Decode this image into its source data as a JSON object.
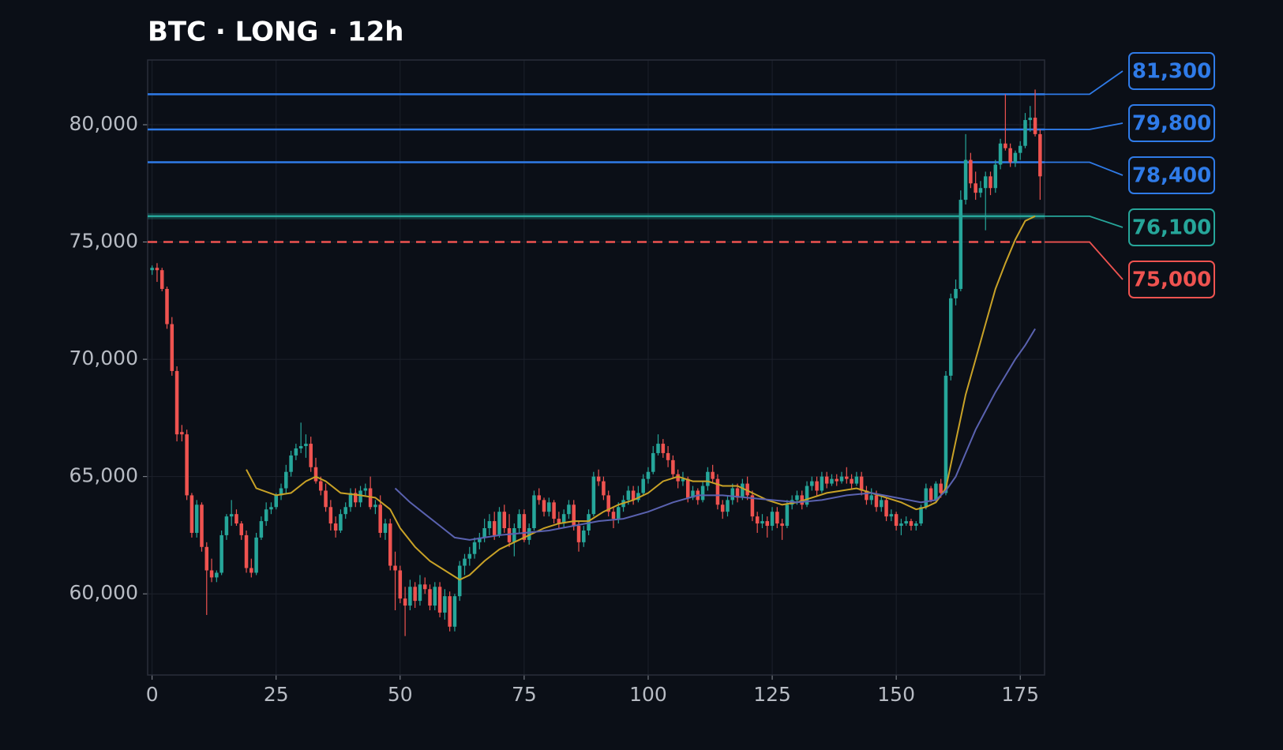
{
  "chart_data": {
    "type": "candlestick",
    "title": "BTC · LONG · 12h",
    "up_color": "#26a69a",
    "down_color": "#ef5350",
    "xlim": [
      -0.9,
      179.9
    ],
    "xticks": [
      0,
      25,
      50,
      75,
      100,
      125,
      150,
      175
    ],
    "ylim": [
      56540,
      82760
    ],
    "yticks": [
      {
        "value": 60000,
        "label": "60,000"
      },
      {
        "value": 65000,
        "label": "65,000"
      },
      {
        "value": 70000,
        "label": "70,000"
      },
      {
        "value": 75000,
        "label": "75,000"
      },
      {
        "value": 80000,
        "label": "80,000"
      }
    ],
    "grid": true,
    "levels": [
      {
        "value": 81300,
        "label": "81,300",
        "color": "#2f7be8"
      },
      {
        "value": 79800,
        "label": "79,800",
        "color": "#2f7be8"
      },
      {
        "value": 78400,
        "label": "78,400",
        "color": "#2f7be8"
      },
      {
        "value": 76100,
        "label": "76,100",
        "color": "#26a69a",
        "band": true
      },
      {
        "value": 75000,
        "label": "75,000",
        "color": "#ef5350",
        "dashed": true
      }
    ],
    "ma": [
      {
        "color": "#c9a227",
        "x": [
          19,
          21,
          25,
          28,
          31,
          33,
          35,
          38,
          42,
          45,
          48,
          50,
          53,
          56,
          59,
          62,
          64,
          67,
          70,
          73,
          76,
          79,
          82,
          85,
          88,
          91,
          94,
          97,
          100,
          103,
          106,
          109,
          112,
          115,
          118,
          121,
          124,
          127,
          130,
          133,
          136,
          139,
          142,
          145,
          148,
          151,
          154,
          156,
          158,
          160,
          162,
          164,
          166,
          168,
          170,
          172,
          174,
          176,
          178
        ],
        "values": [
          65300,
          64500,
          64200,
          64300,
          64800,
          65000,
          64800,
          64300,
          64200,
          64100,
          63600,
          62800,
          62000,
          61400,
          61000,
          60600,
          60800,
          61400,
          61900,
          62200,
          62500,
          62800,
          63000,
          63100,
          63100,
          63500,
          63800,
          64000,
          64300,
          64800,
          65000,
          64800,
          64800,
          64600,
          64600,
          64300,
          64000,
          63800,
          63900,
          64100,
          64300,
          64400,
          64500,
          64300,
          64100,
          63900,
          63600,
          63700,
          63900,
          64500,
          66500,
          68500,
          70000,
          71500,
          73000,
          74100,
          75100,
          75900,
          76100
        ]
      },
      {
        "color": "#5a62b0",
        "x": [
          49,
          52,
          55,
          58,
          61,
          64,
          67,
          70,
          75,
          80,
          85,
          90,
          95,
          100,
          105,
          110,
          115,
          120,
          125,
          130,
          135,
          140,
          145,
          150,
          155,
          158,
          160,
          162,
          164,
          166,
          168,
          170,
          172,
          174,
          176,
          178
        ],
        "values": [
          64500,
          63900,
          63400,
          62900,
          62400,
          62300,
          62400,
          62500,
          62600,
          62700,
          62900,
          63100,
          63200,
          63500,
          63900,
          64200,
          64200,
          64100,
          64000,
          63900,
          64000,
          64200,
          64300,
          64100,
          63900,
          64000,
          64400,
          65000,
          66000,
          67000,
          67800,
          68600,
          69300,
          70000,
          70600,
          71300
        ]
      }
    ],
    "ohlc": [
      [
        73800,
        74000,
        73600,
        73900
      ],
      [
        73900,
        74100,
        73300,
        73800
      ],
      [
        73800,
        73900,
        72900,
        73000
      ],
      [
        73000,
        73100,
        71300,
        71500
      ],
      [
        71500,
        71800,
        69300,
        69500
      ],
      [
        69500,
        69700,
        66500,
        66800
      ],
      [
        66900,
        67200,
        66500,
        66800
      ],
      [
        66800,
        67000,
        64000,
        64200
      ],
      [
        64200,
        64300,
        62400,
        62600
      ],
      [
        62600,
        64000,
        62400,
        63800
      ],
      [
        63800,
        63900,
        61800,
        62000
      ],
      [
        62000,
        62200,
        59100,
        61000
      ],
      [
        61000,
        61500,
        60500,
        60700
      ],
      [
        60700,
        61000,
        60500,
        60900
      ],
      [
        60900,
        62700,
        60800,
        62500
      ],
      [
        62500,
        63400,
        62300,
        63300
      ],
      [
        63300,
        64000,
        62900,
        63400
      ],
      [
        63400,
        63600,
        62900,
        63000
      ],
      [
        63000,
        63100,
        62300,
        62500
      ],
      [
        62500,
        62700,
        60900,
        61100
      ],
      [
        61100,
        61500,
        60700,
        60900
      ],
      [
        60900,
        62600,
        60800,
        62400
      ],
      [
        62400,
        63300,
        62300,
        63100
      ],
      [
        63100,
        63900,
        62900,
        63600
      ],
      [
        63600,
        63900,
        63400,
        63700
      ],
      [
        63700,
        64300,
        63600,
        64200
      ],
      [
        64200,
        64700,
        64000,
        64500
      ],
      [
        64500,
        65500,
        64300,
        65200
      ],
      [
        65200,
        66100,
        65000,
        65900
      ],
      [
        65900,
        66400,
        65700,
        66200
      ],
      [
        66200,
        67300,
        66000,
        66300
      ],
      [
        66300,
        66800,
        65800,
        66400
      ],
      [
        66400,
        66700,
        65200,
        65400
      ],
      [
        65400,
        65800,
        64700,
        64800
      ],
      [
        64800,
        65000,
        64200,
        64400
      ],
      [
        64400,
        64700,
        63500,
        63700
      ],
      [
        63700,
        64000,
        62700,
        63000
      ],
      [
        63000,
        63300,
        62400,
        62700
      ],
      [
        62700,
        63600,
        62600,
        63400
      ],
      [
        63400,
        63900,
        63200,
        63700
      ],
      [
        63700,
        64500,
        63500,
        64300
      ],
      [
        64300,
        64500,
        63700,
        63900
      ],
      [
        63900,
        64600,
        63700,
        64400
      ],
      [
        64400,
        64700,
        64200,
        64500
      ],
      [
        64500,
        65000,
        63600,
        63700
      ],
      [
        63700,
        64000,
        63400,
        63800
      ],
      [
        63800,
        64200,
        62400,
        62600
      ],
      [
        62600,
        63200,
        62300,
        63000
      ],
      [
        63000,
        63200,
        61000,
        61200
      ],
      [
        61200,
        61800,
        59300,
        61000
      ],
      [
        61000,
        61200,
        59600,
        59800
      ],
      [
        59800,
        60300,
        58200,
        59500
      ],
      [
        59500,
        60600,
        59300,
        60300
      ],
      [
        60300,
        60500,
        59400,
        59700
      ],
      [
        59700,
        60800,
        59500,
        60400
      ],
      [
        60400,
        60700,
        60000,
        60200
      ],
      [
        60200,
        60400,
        59300,
        59500
      ],
      [
        59500,
        60500,
        59300,
        60300
      ],
      [
        60300,
        60500,
        59000,
        59200
      ],
      [
        59200,
        60200,
        58900,
        59900
      ],
      [
        59900,
        60100,
        58400,
        58600
      ],
      [
        58600,
        60000,
        58400,
        59900
      ],
      [
        59900,
        61400,
        59700,
        61200
      ],
      [
        61200,
        61700,
        60800,
        61500
      ],
      [
        61500,
        62000,
        61200,
        61700
      ],
      [
        61700,
        62400,
        61500,
        62200
      ],
      [
        62200,
        62600,
        61900,
        62400
      ],
      [
        62400,
        63200,
        62200,
        62800
      ],
      [
        62800,
        63400,
        62500,
        63100
      ],
      [
        63100,
        63500,
        62300,
        62500
      ],
      [
        62500,
        63700,
        62400,
        63500
      ],
      [
        63500,
        63800,
        62600,
        62800
      ],
      [
        62800,
        63400,
        62000,
        62200
      ],
      [
        62200,
        63000,
        61600,
        62800
      ],
      [
        62800,
        63600,
        62600,
        63400
      ],
      [
        63400,
        63600,
        62200,
        62300
      ],
      [
        62300,
        63000,
        62100,
        62800
      ],
      [
        62800,
        64400,
        62700,
        64200
      ],
      [
        64200,
        64500,
        63800,
        64000
      ],
      [
        64000,
        64100,
        63300,
        63500
      ],
      [
        63500,
        64100,
        63300,
        63900
      ],
      [
        63900,
        64000,
        63000,
        63200
      ],
      [
        63200,
        63500,
        62800,
        63000
      ],
      [
        63000,
        63600,
        62800,
        63400
      ],
      [
        63400,
        64000,
        63200,
        63800
      ],
      [
        63800,
        64000,
        62700,
        62900
      ],
      [
        62900,
        63100,
        61800,
        62200
      ],
      [
        62200,
        62900,
        62000,
        62700
      ],
      [
        62700,
        63600,
        62500,
        63400
      ],
      [
        63400,
        65200,
        63300,
        65000
      ],
      [
        65000,
        65300,
        64600,
        64800
      ],
      [
        64800,
        65000,
        64000,
        64200
      ],
      [
        64200,
        64400,
        63300,
        63500
      ],
      [
        63500,
        63700,
        62800,
        63200
      ],
      [
        63200,
        63900,
        63000,
        63700
      ],
      [
        63700,
        64200,
        63500,
        64000
      ],
      [
        64000,
        64600,
        63800,
        64400
      ],
      [
        64400,
        64600,
        63800,
        64000
      ],
      [
        64000,
        64600,
        63900,
        64300
      ],
      [
        64300,
        65100,
        64200,
        64900
      ],
      [
        64900,
        65400,
        64700,
        65200
      ],
      [
        65200,
        66300,
        65100,
        66000
      ],
      [
        66000,
        66800,
        65900,
        66400
      ],
      [
        66400,
        66600,
        65800,
        66000
      ],
      [
        66000,
        66300,
        65400,
        65700
      ],
      [
        65700,
        65900,
        64900,
        65100
      ],
      [
        65100,
        65300,
        64500,
        64800
      ],
      [
        64800,
        65200,
        64600,
        64900
      ],
      [
        64900,
        65000,
        63900,
        64100
      ],
      [
        64100,
        64600,
        64000,
        64400
      ],
      [
        64400,
        64500,
        63800,
        64000
      ],
      [
        64000,
        64800,
        63900,
        64600
      ],
      [
        64600,
        65400,
        64400,
        65200
      ],
      [
        65200,
        65500,
        64700,
        64900
      ],
      [
        64900,
        65100,
        63600,
        63800
      ],
      [
        63800,
        64000,
        63200,
        63500
      ],
      [
        63500,
        64200,
        63300,
        64000
      ],
      [
        64000,
        64700,
        63800,
        64500
      ],
      [
        64500,
        64700,
        63900,
        64100
      ],
      [
        64100,
        64900,
        64000,
        64700
      ],
      [
        64700,
        65000,
        64000,
        64200
      ],
      [
        64200,
        64400,
        63100,
        63300
      ],
      [
        63300,
        63500,
        62600,
        63000
      ],
      [
        63000,
        63400,
        62800,
        63100
      ],
      [
        63100,
        63300,
        62400,
        62900
      ],
      [
        62900,
        63700,
        62700,
        63500
      ],
      [
        63500,
        63700,
        62800,
        63000
      ],
      [
        63000,
        63200,
        62300,
        62900
      ],
      [
        62900,
        64000,
        62800,
        63800
      ],
      [
        63800,
        64200,
        63600,
        64000
      ],
      [
        64000,
        64400,
        63800,
        64200
      ],
      [
        64200,
        64400,
        63600,
        63800
      ],
      [
        63800,
        64800,
        63700,
        64600
      ],
      [
        64600,
        65000,
        64400,
        64800
      ],
      [
        64800,
        65000,
        64200,
        64400
      ],
      [
        64400,
        65200,
        64300,
        65000
      ],
      [
        65000,
        65200,
        64500,
        64700
      ],
      [
        64700,
        65100,
        64600,
        64900
      ],
      [
        64900,
        65100,
        64600,
        64800
      ],
      [
        64800,
        65200,
        64700,
        65000
      ],
      [
        65000,
        65400,
        64700,
        64900
      ],
      [
        64900,
        65100,
        64500,
        64700
      ],
      [
        64700,
        65200,
        64600,
        65000
      ],
      [
        65000,
        65200,
        64200,
        64400
      ],
      [
        64400,
        64600,
        63800,
        64000
      ],
      [
        64000,
        64500,
        63800,
        64200
      ],
      [
        64200,
        64400,
        63500,
        63700
      ],
      [
        63700,
        64200,
        63500,
        64000
      ],
      [
        64000,
        64100,
        63100,
        63300
      ],
      [
        63300,
        63600,
        63100,
        63400
      ],
      [
        63400,
        63500,
        62700,
        62900
      ],
      [
        62900,
        63200,
        62500,
        63000
      ],
      [
        63000,
        63300,
        62900,
        63100
      ],
      [
        63100,
        63200,
        62700,
        62900
      ],
      [
        62900,
        63100,
        62700,
        63000
      ],
      [
        63000,
        63800,
        62900,
        63700
      ],
      [
        63700,
        64700,
        63600,
        64500
      ],
      [
        64500,
        64600,
        63900,
        64000
      ],
      [
        64000,
        64800,
        63900,
        64700
      ],
      [
        64700,
        64900,
        64100,
        64300
      ],
      [
        64300,
        69500,
        64200,
        69300
      ],
      [
        69300,
        72800,
        69100,
        72600
      ],
      [
        72600,
        73400,
        72300,
        73000
      ],
      [
        73000,
        77200,
        72900,
        76800
      ],
      [
        76800,
        79600,
        76600,
        78500
      ],
      [
        78500,
        78800,
        77300,
        77500
      ],
      [
        77500,
        78000,
        76800,
        77100
      ],
      [
        77100,
        77600,
        76900,
        77300
      ],
      [
        77300,
        78000,
        75500,
        77800
      ],
      [
        77800,
        78000,
        77000,
        77300
      ],
      [
        77300,
        78500,
        77100,
        78300
      ],
      [
        78300,
        79400,
        78100,
        79200
      ],
      [
        79200,
        81300,
        78900,
        79000
      ],
      [
        79000,
        79200,
        78200,
        78400
      ],
      [
        78400,
        78900,
        78200,
        78800
      ],
      [
        78800,
        79300,
        78500,
        79100
      ],
      [
        79100,
        80500,
        79000,
        80200
      ],
      [
        80200,
        80800,
        79700,
        80300
      ],
      [
        80300,
        81500,
        79500,
        79600
      ],
      [
        79600,
        79800,
        76800,
        77800
      ]
    ]
  }
}
